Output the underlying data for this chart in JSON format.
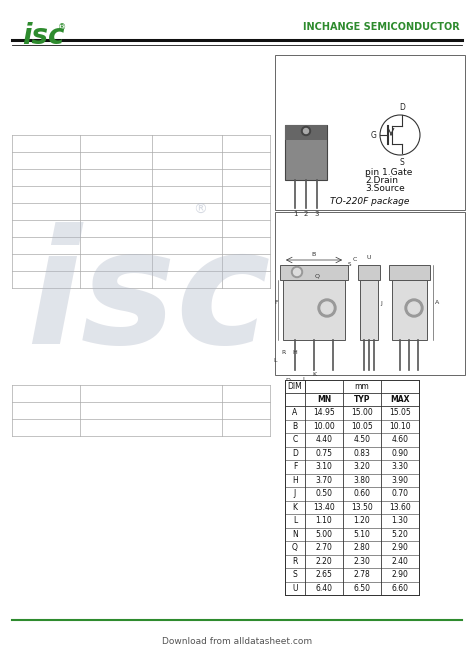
{
  "isc_color": "#2e8b2e",
  "header_text": "INCHANGE SEMICONDUCTOR",
  "watermark_text": "isc",
  "footer_text": "Download from alldatasheet.com",
  "footer_line_color": "#2e8b2e",
  "pin_info": [
    "pin 1.Gate",
    "2.Drain",
    "3.Source"
  ],
  "package_text": "TO-220F package",
  "dim_rows": [
    [
      "A",
      "14.95",
      "15.00",
      "15.05"
    ],
    [
      "B",
      "10.00",
      "10.05",
      "10.10"
    ],
    [
      "C",
      "4.40",
      "4.50",
      "4.60"
    ],
    [
      "D",
      "0.75",
      "0.83",
      "0.90"
    ],
    [
      "F",
      "3.10",
      "3.20",
      "3.30"
    ],
    [
      "H",
      "3.70",
      "3.80",
      "3.90"
    ],
    [
      "J",
      "0.50",
      "0.60",
      "0.70"
    ],
    [
      "K",
      "13.40",
      "13.50",
      "13.60"
    ],
    [
      "L",
      "1.10",
      "1.20",
      "1.30"
    ],
    [
      "N",
      "5.00",
      "5.10",
      "5.20"
    ],
    [
      "Q",
      "2.70",
      "2.80",
      "2.90"
    ],
    [
      "R",
      "2.20",
      "2.30",
      "2.40"
    ],
    [
      "S",
      "2.65",
      "2.78",
      "2.90"
    ],
    [
      "U",
      "6.40",
      "6.50",
      "6.60"
    ]
  ],
  "bg_color": "#ffffff",
  "table_line_color": "#333333",
  "text_color": "#111111"
}
